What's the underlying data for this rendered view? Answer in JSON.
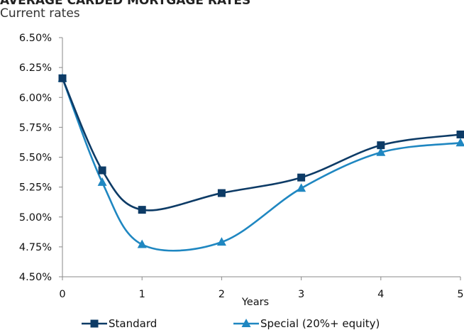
{
  "chart_data": {
    "type": "line",
    "title": "AVERAGE CARDED MORTGAGE RATES",
    "subtitle": "Current rates",
    "xlabel": "Years",
    "ylabel": "",
    "x": [
      0,
      0.5,
      1,
      2,
      3,
      4,
      5
    ],
    "x_ticks": [
      "0",
      "1",
      "2",
      "3",
      "4",
      "5"
    ],
    "y_ticks": [
      "4.50%",
      "4.75%",
      "5.00%",
      "5.25%",
      "5.50%",
      "5.75%",
      "6.00%",
      "6.25%",
      "6.50%"
    ],
    "xlim": [
      0,
      5
    ],
    "ylim": [
      4.5,
      6.5
    ],
    "grid": false,
    "legend_position": "bottom",
    "series": [
      {
        "name": "Standard",
        "marker": "square",
        "color": "#0d3b66",
        "values": [
          6.16,
          5.39,
          5.06,
          5.2,
          5.33,
          5.6,
          5.69
        ]
      },
      {
        "name": "Special (20%+ equity)",
        "marker": "triangle",
        "color": "#1f87c1",
        "values": [
          6.16,
          5.29,
          4.77,
          4.79,
          5.24,
          5.54,
          5.62
        ]
      }
    ]
  }
}
